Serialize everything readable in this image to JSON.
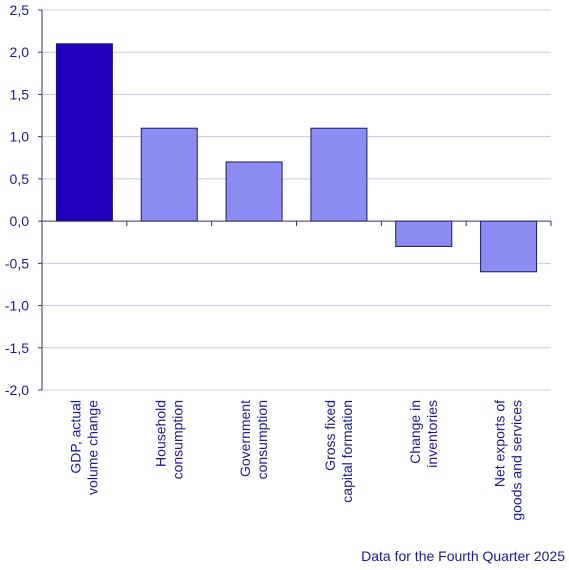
{
  "chart_data": {
    "type": "bar",
    "categories": [
      [
        "GDP, actual",
        "volume change"
      ],
      [
        "Household",
        "consumption"
      ],
      [
        "Government",
        "consumption"
      ],
      [
        "Gross fixed",
        "capital formation"
      ],
      [
        "Change in",
        "inventories"
      ],
      [
        "Net exports of",
        "goods and services"
      ]
    ],
    "values": [
      2.1,
      1.1,
      0.7,
      1.1,
      -0.3,
      -0.6
    ],
    "ylim": [
      -2.0,
      2.5
    ],
    "yticks": [
      -2.0,
      -1.5,
      -1.0,
      -0.5,
      0.0,
      0.5,
      1.0,
      1.5,
      2.0,
      2.5
    ],
    "ytick_labels": [
      "-2,0",
      "-1,5",
      "-1,0",
      "-0,5",
      "0,0",
      "0,5",
      "1,0",
      "1,5",
      "2,0",
      "2,5"
    ],
    "grid": true,
    "colors": {
      "highlight": "#2200bb",
      "bar": "#8c8cf2",
      "edge": "#1a1a66",
      "text": "#1a1a99",
      "grid": "#c8c8e8",
      "axis": "#333366"
    }
  },
  "footnote": "Data for the Fourth Quarter 2025"
}
